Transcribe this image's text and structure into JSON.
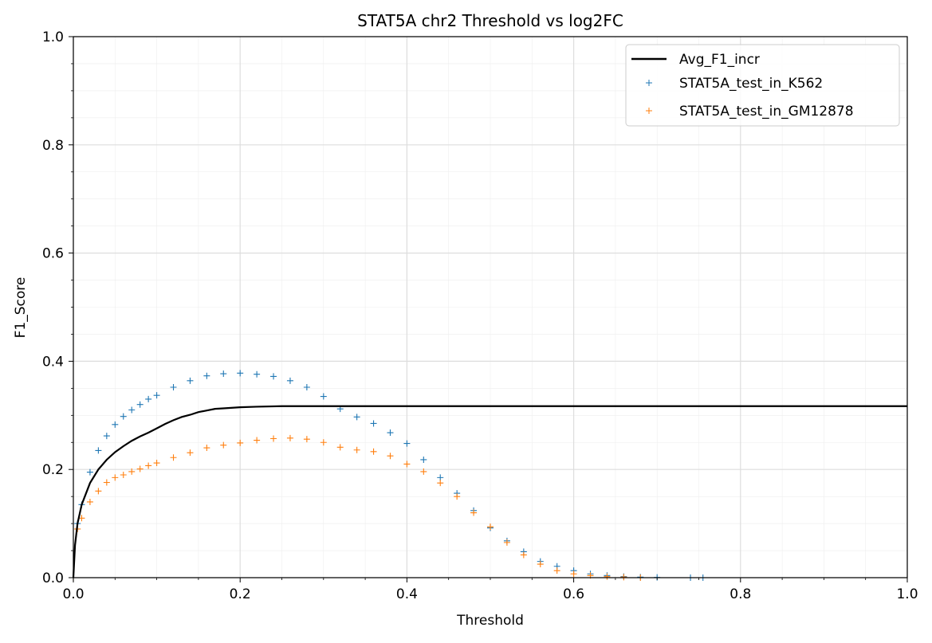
{
  "chart_data": {
    "type": "scatter",
    "title": "STAT5A chr2 Threshold vs log2FC",
    "xlabel": "Threshold",
    "ylabel": "F1_Score",
    "xlim": [
      0.0,
      1.0
    ],
    "ylim": [
      0.0,
      1.0
    ],
    "x_ticks": [
      "0.0",
      "0.2",
      "0.4",
      "0.6",
      "0.8",
      "1.0"
    ],
    "y_ticks": [
      "0.0",
      "0.2",
      "0.4",
      "0.6",
      "0.8",
      "1.0"
    ],
    "x_tick_values": [
      0.0,
      0.2,
      0.4,
      0.6,
      0.8,
      1.0
    ],
    "y_tick_values": [
      0.0,
      0.2,
      0.4,
      0.6,
      0.8,
      1.0
    ],
    "grid": "major and minor",
    "legend_position": "top-right",
    "series": [
      {
        "name": "Avg_F1_incr",
        "kind": "line",
        "color": "#000000",
        "x": [
          0.0,
          0.002,
          0.005,
          0.01,
          0.02,
          0.03,
          0.04,
          0.05,
          0.06,
          0.07,
          0.08,
          0.09,
          0.1,
          0.11,
          0.12,
          0.13,
          0.14,
          0.15,
          0.16,
          0.17,
          0.18,
          0.2,
          0.22,
          0.25,
          0.3,
          0.4,
          0.5,
          0.6,
          0.7,
          0.8,
          0.9,
          1.0
        ],
        "y": [
          0.0,
          0.06,
          0.1,
          0.135,
          0.175,
          0.2,
          0.218,
          0.232,
          0.243,
          0.253,
          0.261,
          0.268,
          0.276,
          0.284,
          0.291,
          0.297,
          0.301,
          0.306,
          0.309,
          0.312,
          0.313,
          0.315,
          0.316,
          0.317,
          0.317,
          0.317,
          0.317,
          0.317,
          0.317,
          0.317,
          0.317,
          0.317
        ]
      },
      {
        "name": "STAT5A_test_in_K562",
        "kind": "scatter",
        "marker": "+",
        "color": "#1f77b4",
        "x": [
          0.0,
          0.005,
          0.01,
          0.02,
          0.03,
          0.04,
          0.05,
          0.06,
          0.07,
          0.08,
          0.09,
          0.1,
          0.12,
          0.14,
          0.16,
          0.18,
          0.2,
          0.22,
          0.24,
          0.26,
          0.28,
          0.3,
          0.32,
          0.34,
          0.36,
          0.38,
          0.4,
          0.42,
          0.44,
          0.46,
          0.48,
          0.5,
          0.52,
          0.54,
          0.56,
          0.58,
          0.6,
          0.62,
          0.64,
          0.66,
          0.68,
          0.7,
          0.74,
          0.755
        ],
        "y": [
          0.0,
          0.1,
          0.135,
          0.195,
          0.235,
          0.262,
          0.283,
          0.298,
          0.31,
          0.32,
          0.33,
          0.337,
          0.352,
          0.364,
          0.373,
          0.377,
          0.378,
          0.376,
          0.372,
          0.364,
          0.352,
          0.335,
          0.312,
          0.297,
          0.285,
          0.268,
          0.248,
          0.218,
          0.185,
          0.156,
          0.124,
          0.092,
          0.068,
          0.048,
          0.03,
          0.021,
          0.013,
          0.007,
          0.004,
          0.002,
          0.001,
          0.0005,
          0.0,
          0.0
        ]
      },
      {
        "name": "STAT5A_test_in_GM12878",
        "kind": "scatter",
        "marker": "+",
        "color": "#ff7f0e",
        "x": [
          0.0,
          0.005,
          0.01,
          0.02,
          0.03,
          0.04,
          0.05,
          0.06,
          0.07,
          0.08,
          0.09,
          0.1,
          0.12,
          0.14,
          0.16,
          0.18,
          0.2,
          0.22,
          0.24,
          0.26,
          0.28,
          0.3,
          0.32,
          0.34,
          0.36,
          0.38,
          0.4,
          0.42,
          0.44,
          0.46,
          0.48,
          0.5,
          0.52,
          0.54,
          0.56,
          0.58,
          0.6,
          0.62,
          0.64,
          0.66,
          0.68
        ],
        "y": [
          0.0,
          0.09,
          0.11,
          0.14,
          0.16,
          0.176,
          0.185,
          0.19,
          0.196,
          0.201,
          0.207,
          0.212,
          0.222,
          0.231,
          0.24,
          0.245,
          0.249,
          0.254,
          0.257,
          0.258,
          0.256,
          0.25,
          0.241,
          0.236,
          0.233,
          0.225,
          0.21,
          0.196,
          0.175,
          0.15,
          0.12,
          0.094,
          0.065,
          0.042,
          0.025,
          0.013,
          0.007,
          0.004,
          0.002,
          0.001,
          0.0
        ]
      }
    ]
  }
}
